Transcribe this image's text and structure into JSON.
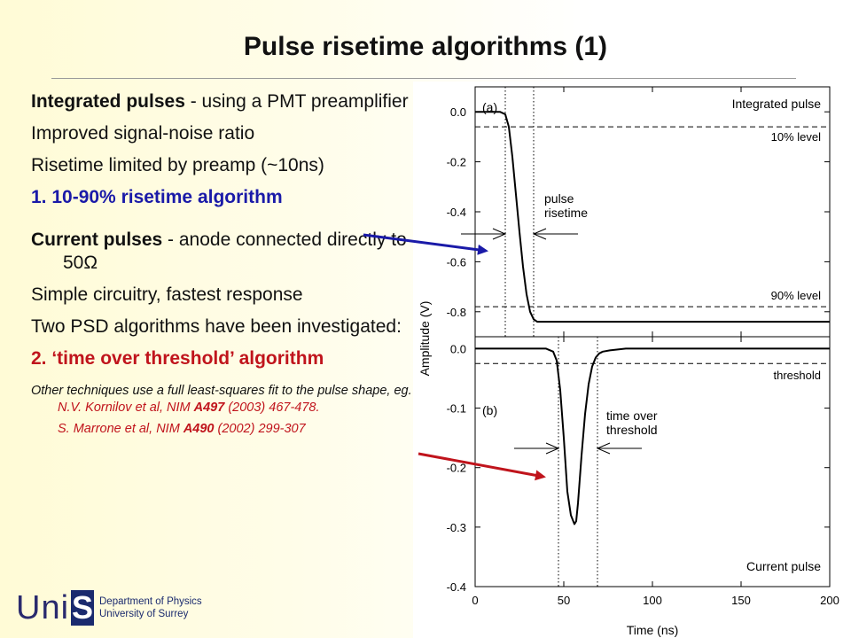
{
  "title": "Pulse risetime algorithms (1)",
  "left": {
    "p1_bold": "Integrated pulses",
    "p1_rest": " - using a PMT preamplifier",
    "p2": "Improved signal-noise ratio",
    "p3": "Risetime limited by preamp (~10ns)",
    "p4": "1. 10-90% risetime algorithm",
    "p5_bold": "Current pulses",
    "p5_rest": " - anode connected directly to 50Ω",
    "p6": "Simple circuitry, fastest response",
    "p7": "Two PSD algorithms have been investigated:",
    "p8": "2. ‘time over threshold’ algorithm",
    "ref1_a": "Other techniques use a full least-squares fit to the pulse shape, eg. ",
    "ref1_b": "N.V. Kornilov et al, NIM ",
    "ref1_c": "A497",
    "ref1_d": " (2003) 467-478.",
    "ref2_a": "S. Marrone et al, NIM ",
    "ref2_b": "A490",
    "ref2_c": " (2002) 299-307"
  },
  "logo": {
    "uni": "Uni",
    "s": "S",
    "dept1": "Department of Physics",
    "dept2": "University of Surrey"
  },
  "colors": {
    "blue": "#1a1aa8",
    "red": "#c0141c"
  },
  "chart_data": [
    {
      "type": "line",
      "panel_label": "(a)",
      "legend": "Integrated pulse",
      "ylabel": "Amplitude (V)",
      "xlim": [
        0,
        200
      ],
      "ylim": [
        -0.9,
        0.1
      ],
      "yticks": [
        0.0,
        -0.2,
        -0.4,
        -0.6,
        -0.8
      ],
      "ytick_labels": [
        "0.0",
        "-0.2",
        "-0.4",
        "-0.6",
        "-0.8"
      ],
      "x": [
        0,
        10,
        14,
        17,
        19,
        21,
        23,
        25,
        27,
        29,
        31,
        33,
        35,
        38,
        42,
        50,
        60,
        80,
        100,
        120,
        150,
        180,
        200
      ],
      "y": [
        0.0,
        0.0,
        0.0,
        -0.01,
        -0.06,
        -0.18,
        -0.33,
        -0.48,
        -0.62,
        -0.73,
        -0.8,
        -0.83,
        -0.84,
        -0.84,
        -0.84,
        -0.84,
        -0.84,
        -0.84,
        -0.84,
        -0.84,
        -0.84,
        -0.84,
        -0.84
      ],
      "hlines": [
        {
          "y": -0.06,
          "label": "10% level"
        },
        {
          "y": -0.78,
          "label": "90% level"
        }
      ],
      "vlines": [
        17,
        33
      ],
      "annotation": [
        "pulse",
        "risetime"
      ]
    },
    {
      "type": "line",
      "panel_label": "(b)",
      "legend": "Current pulse",
      "xlabel": "Time (ns)",
      "xlim": [
        0,
        200
      ],
      "ylim": [
        -0.4,
        0.02
      ],
      "yticks": [
        0.0,
        -0.1,
        -0.2,
        -0.3,
        -0.4
      ],
      "ytick_labels": [
        "0.0",
        "-0.1",
        "-0.2",
        "-0.3",
        "-0.4"
      ],
      "xticks": [
        0,
        50,
        100,
        150,
        200
      ],
      "xtick_labels": [
        "0",
        "50",
        "100",
        "150",
        "200"
      ],
      "x": [
        0,
        30,
        40,
        44,
        46,
        48,
        50,
        52,
        54,
        56,
        57,
        58,
        60,
        62,
        64,
        66,
        68,
        70,
        72,
        76,
        85,
        100,
        150,
        200
      ],
      "y": [
        0.0,
        0.0,
        0.0,
        -0.005,
        -0.02,
        -0.07,
        -0.15,
        -0.24,
        -0.28,
        -0.295,
        -0.29,
        -0.26,
        -0.18,
        -0.11,
        -0.06,
        -0.03,
        -0.015,
        -0.008,
        -0.005,
        -0.003,
        0.0,
        0.0,
        0.0,
        0.0
      ],
      "hlines": [
        {
          "y": -0.025,
          "label": "threshold"
        }
      ],
      "vlines": [
        47,
        69
      ],
      "annotation": [
        "time over",
        "threshold"
      ]
    }
  ]
}
